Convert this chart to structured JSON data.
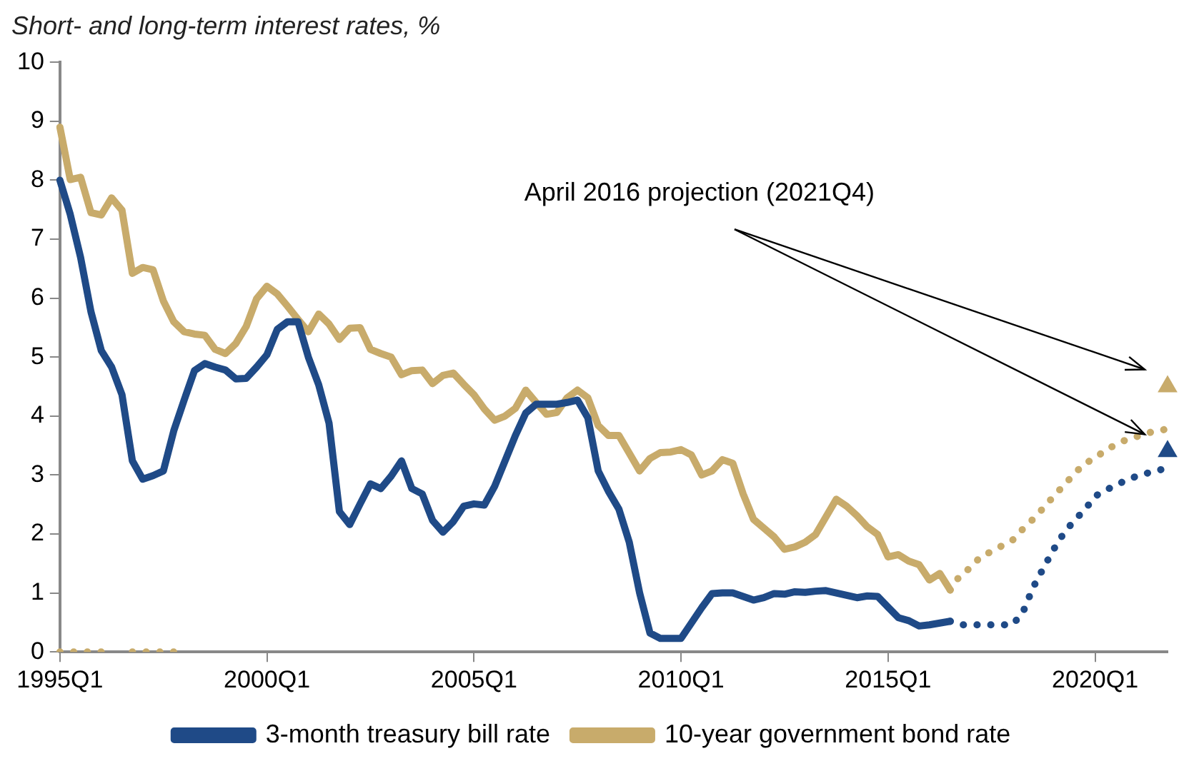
{
  "chart_data": {
    "type": "line",
    "title": "Short- and long-term interest rates, %",
    "categories": [
      "1995Q1",
      null,
      null,
      null,
      null,
      null,
      null,
      null,
      null,
      null,
      null,
      null,
      null,
      null,
      null,
      null,
      null,
      null,
      null,
      null,
      "2000Q1",
      null,
      null,
      null,
      null,
      null,
      null,
      null,
      null,
      null,
      null,
      null,
      null,
      null,
      null,
      null,
      null,
      null,
      null,
      null,
      "2005Q1",
      null,
      null,
      null,
      null,
      null,
      null,
      null,
      null,
      null,
      null,
      null,
      null,
      null,
      null,
      null,
      null,
      null,
      null,
      null,
      "2010Q1",
      null,
      null,
      null,
      null,
      null,
      null,
      null,
      null,
      null,
      null,
      null,
      null,
      null,
      null,
      null,
      null,
      null,
      null,
      null,
      "2015Q1",
      null,
      null,
      null,
      null,
      null,
      null,
      null,
      null,
      null,
      null,
      null,
      null,
      null,
      null,
      null,
      null,
      null,
      null,
      null,
      "2020Q1",
      null,
      null,
      null,
      null,
      null,
      null,
      null
    ],
    "series": [
      {
        "name": "3-month treasury bill rate",
        "color": "#1f4a87",
        "line_style": "solid",
        "marker": "none",
        "values": [
          8.0,
          7.42,
          6.69,
          5.77,
          5.11,
          4.83,
          4.36,
          3.24,
          2.93,
          2.99,
          3.07,
          3.75,
          4.27,
          4.77,
          4.89,
          4.83,
          4.78,
          4.63,
          4.64,
          4.83,
          5.04,
          5.47,
          5.6,
          5.6,
          5.0,
          4.53,
          3.88,
          2.38,
          2.16,
          2.51,
          2.85,
          2.77,
          2.98,
          3.24,
          2.77,
          2.68,
          2.23,
          2.03,
          2.21,
          2.47,
          2.51,
          2.49,
          2.81,
          3.24,
          3.67,
          4.05,
          4.2,
          4.2,
          4.2,
          4.23,
          4.27,
          3.97,
          3.07,
          2.72,
          2.42,
          1.86,
          1.0,
          0.32,
          0.23,
          0.23,
          0.23,
          0.49,
          0.75,
          0.99,
          1.0,
          1.0,
          0.94,
          0.88,
          0.92,
          0.99,
          0.98,
          1.02,
          1.01,
          1.03,
          1.04,
          1.0,
          0.96,
          0.92,
          0.95,
          0.94,
          0.76,
          0.58,
          0.53,
          0.44,
          0.46,
          0.49,
          0.52,
          null,
          null,
          null,
          null,
          null,
          null,
          null,
          null,
          null,
          null,
          null,
          null,
          null,
          null,
          null,
          null,
          null,
          null,
          null,
          null,
          null
        ]
      },
      {
        "name": "10-year government bond rate",
        "color": "#c8ab6b",
        "line_style": "solid",
        "marker": "none",
        "values": [
          8.9,
          8.01,
          8.05,
          7.45,
          7.41,
          7.7,
          7.49,
          6.42,
          6.52,
          6.48,
          5.95,
          5.6,
          5.43,
          5.39,
          5.37,
          5.13,
          5.06,
          5.23,
          5.52,
          5.99,
          6.2,
          6.07,
          5.86,
          5.64,
          5.43,
          5.73,
          5.56,
          5.3,
          5.49,
          5.5,
          5.13,
          5.06,
          5.0,
          4.7,
          4.77,
          4.78,
          4.55,
          4.69,
          4.73,
          4.54,
          4.36,
          4.12,
          3.93,
          4.0,
          4.13,
          4.44,
          4.23,
          4.03,
          4.06,
          4.31,
          4.44,
          4.31,
          3.84,
          3.67,
          3.67,
          3.37,
          3.07,
          3.28,
          3.38,
          3.39,
          3.43,
          3.34,
          3.0,
          3.07,
          3.26,
          3.2,
          2.68,
          2.25,
          2.1,
          1.95,
          1.74,
          1.78,
          1.86,
          1.99,
          2.29,
          2.59,
          2.47,
          2.31,
          2.12,
          1.99,
          1.61,
          1.65,
          1.54,
          1.48,
          1.22,
          1.33,
          1.05,
          null,
          null,
          null,
          null,
          null,
          null,
          null,
          null,
          null,
          null,
          null,
          null,
          null,
          null,
          null,
          null,
          null,
          null,
          null,
          null,
          null
        ]
      },
      {
        "color": "#1f4a87",
        "line_style": "dotted",
        "marker": "none",
        "values": [
          null,
          null,
          null,
          null,
          null,
          null,
          null,
          null,
          null,
          null,
          null,
          null,
          null,
          null,
          null,
          null,
          null,
          null,
          null,
          null,
          null,
          null,
          null,
          null,
          null,
          null,
          null,
          null,
          null,
          null,
          null,
          null,
          null,
          null,
          null,
          null,
          null,
          null,
          null,
          null,
          null,
          null,
          null,
          null,
          null,
          null,
          null,
          null,
          null,
          null,
          null,
          null,
          null,
          null,
          null,
          null,
          null,
          null,
          null,
          null,
          null,
          null,
          null,
          null,
          null,
          null,
          null,
          null,
          null,
          null,
          null,
          null,
          null,
          null,
          null,
          null,
          null,
          null,
          null,
          null,
          null,
          null,
          null,
          null,
          null,
          null,
          0.52,
          0.46,
          0.46,
          0.46,
          0.46,
          0.46,
          0.46,
          0.66,
          1.09,
          1.42,
          1.74,
          2.02,
          2.23,
          2.41,
          2.64,
          2.74,
          2.83,
          2.91,
          2.98,
          3.03,
          3.08,
          3.11
        ]
      },
      {
        "color": "#c8ab6b",
        "line_style": "dotted",
        "marker": "none",
        "values": [
          0,
          0,
          0,
          0,
          0,
          null,
          null,
          0,
          0,
          0,
          0,
          0,
          null,
          null,
          null,
          null,
          null,
          null,
          null,
          null,
          null,
          null,
          null,
          null,
          null,
          null,
          null,
          null,
          null,
          null,
          null,
          null,
          null,
          null,
          null,
          null,
          null,
          null,
          null,
          null,
          null,
          null,
          null,
          null,
          null,
          null,
          null,
          null,
          null,
          null,
          null,
          null,
          null,
          null,
          null,
          null,
          null,
          null,
          null,
          null,
          null,
          null,
          null,
          null,
          null,
          null,
          null,
          null,
          null,
          null,
          null,
          null,
          null,
          null,
          null,
          null,
          null,
          null,
          null,
          null,
          null,
          null,
          null,
          null,
          null,
          null,
          1.05,
          1.31,
          1.43,
          1.63,
          1.7,
          1.8,
          1.89,
          2.08,
          2.25,
          2.44,
          2.64,
          2.83,
          3.02,
          3.2,
          3.28,
          3.43,
          3.51,
          3.6,
          3.65,
          3.71,
          3.75,
          3.78
        ]
      },
      {
        "type": "scatter",
        "color": "#1f4a87",
        "marker": "triangle",
        "values": [
          null,
          null,
          null,
          null,
          null,
          null,
          null,
          null,
          null,
          null,
          null,
          null,
          null,
          null,
          null,
          null,
          null,
          null,
          null,
          null,
          null,
          null,
          null,
          null,
          null,
          null,
          null,
          null,
          null,
          null,
          null,
          null,
          null,
          null,
          null,
          null,
          null,
          null,
          null,
          null,
          null,
          null,
          null,
          null,
          null,
          null,
          null,
          null,
          null,
          null,
          null,
          null,
          null,
          null,
          null,
          null,
          null,
          null,
          null,
          null,
          null,
          null,
          null,
          null,
          null,
          null,
          null,
          null,
          null,
          null,
          null,
          null,
          null,
          null,
          null,
          null,
          null,
          null,
          null,
          null,
          null,
          null,
          null,
          null,
          null,
          null,
          null,
          null,
          null,
          null,
          null,
          null,
          null,
          null,
          null,
          null,
          null,
          null,
          null,
          null,
          null,
          null,
          null,
          null,
          null,
          null,
          null,
          3.4
        ]
      },
      {
        "type": "scatter",
        "color": "#c8ab6b",
        "marker": "triangle",
        "values": [
          null,
          null,
          null,
          null,
          null,
          null,
          null,
          null,
          null,
          null,
          null,
          null,
          null,
          null,
          null,
          null,
          null,
          null,
          null,
          null,
          null,
          null,
          null,
          null,
          null,
          null,
          null,
          null,
          null,
          null,
          null,
          null,
          null,
          null,
          null,
          null,
          null,
          null,
          null,
          null,
          null,
          null,
          null,
          null,
          null,
          null,
          null,
          null,
          null,
          null,
          null,
          null,
          null,
          null,
          null,
          null,
          null,
          null,
          null,
          null,
          null,
          null,
          null,
          null,
          null,
          null,
          null,
          null,
          null,
          null,
          null,
          null,
          null,
          null,
          null,
          null,
          null,
          null,
          null,
          null,
          null,
          null,
          null,
          null,
          null,
          null,
          null,
          null,
          null,
          null,
          null,
          null,
          null,
          null,
          null,
          null,
          null,
          null,
          null,
          null,
          null,
          null,
          null,
          null,
          null,
          null,
          null,
          4.5
        ]
      }
    ],
    "ylim": [
      0,
      10
    ],
    "yticks": [
      0,
      1,
      2,
      3,
      4,
      5,
      6,
      7,
      8,
      9,
      10
    ],
    "annotations": [
      "April 2016 projection (2021Q4)"
    ],
    "legend": "bottom"
  }
}
